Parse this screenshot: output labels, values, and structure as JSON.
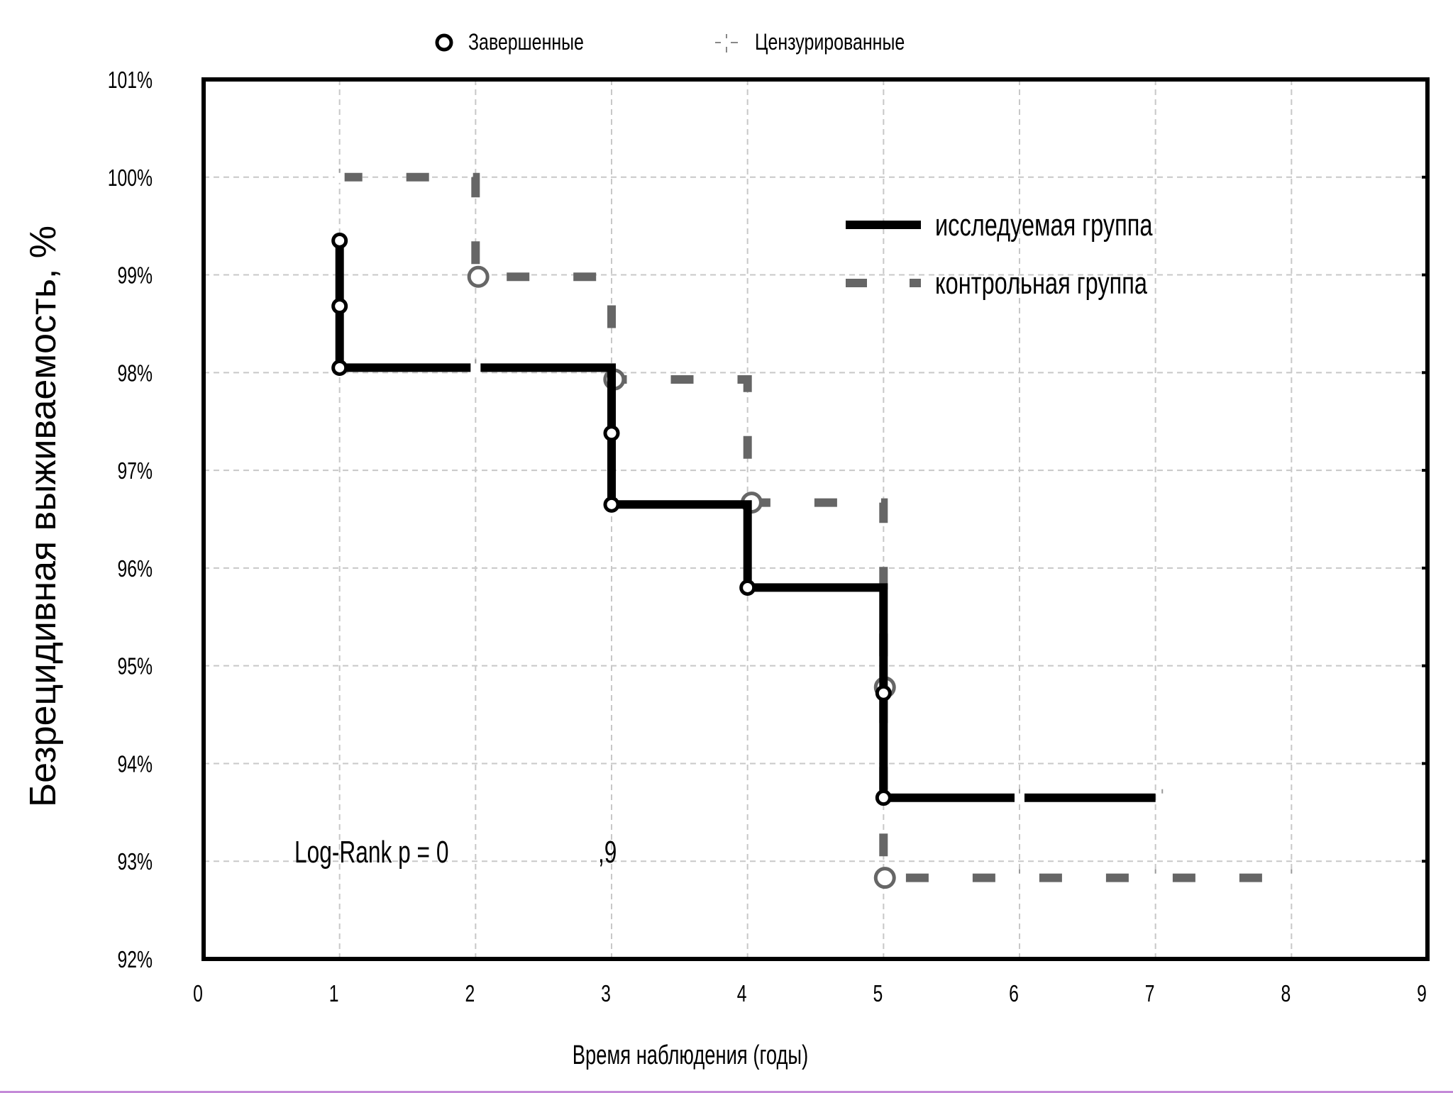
{
  "chart_data": {
    "type": "line",
    "xlabel": "Время наблюдения (годы)",
    "ylabel": "Безрецидивная выживаемость, %",
    "xlim": [
      0,
      9
    ],
    "ylim": [
      92,
      101
    ],
    "x_ticks": [
      "0",
      "1",
      "2",
      "3",
      "4",
      "5",
      "6",
      "7",
      "8",
      "9"
    ],
    "y_ticks": [
      "92%",
      "93%",
      "94%",
      "95%",
      "96%",
      "97%",
      "98%",
      "99%",
      "100%",
      "101%"
    ],
    "grid": true,
    "marker_legend": {
      "completed": "Завершенные",
      "censored": "Цензурированные",
      "placement": "top-center"
    },
    "annotation": {
      "label": "Log-Rank p = 0",
      "value": ",9"
    },
    "series": [
      {
        "name": "исследуемая группа",
        "color": "#000000",
        "style": "solid",
        "steps": [
          {
            "x": 1,
            "y": 99.35
          },
          {
            "x": 1,
            "y": 98.05
          },
          {
            "x": 3,
            "y": 98.05
          },
          {
            "x": 3,
            "y": 96.65
          },
          {
            "x": 4,
            "y": 96.65
          },
          {
            "x": 4,
            "y": 95.8
          },
          {
            "x": 5,
            "y": 95.8
          },
          {
            "x": 5,
            "y": 93.65
          },
          {
            "x": 7,
            "y": 93.65
          }
        ],
        "completed": [
          {
            "x": 1,
            "y": 99.35
          },
          {
            "x": 1,
            "y": 98.68
          },
          {
            "x": 1,
            "y": 98.05
          },
          {
            "x": 3,
            "y": 97.38
          },
          {
            "x": 3,
            "y": 96.65
          },
          {
            "x": 4,
            "y": 95.8
          },
          {
            "x": 5,
            "y": 94.72
          },
          {
            "x": 5,
            "y": 93.65
          }
        ],
        "censored": [
          {
            "x": 2,
            "y": 98.05
          },
          {
            "x": 6,
            "y": 93.65
          },
          {
            "x": 7.05,
            "y": 93.65
          }
        ]
      },
      {
        "name": "контрольная группа",
        "color": "#666666",
        "style": "dashed",
        "steps": [
          {
            "x": 1,
            "y": 100
          },
          {
            "x": 2,
            "y": 100
          },
          {
            "x": 2,
            "y": 98.98
          },
          {
            "x": 3,
            "y": 98.98
          },
          {
            "x": 3,
            "y": 97.93
          },
          {
            "x": 4,
            "y": 97.93
          },
          {
            "x": 4,
            "y": 96.67
          },
          {
            "x": 5,
            "y": 96.67
          },
          {
            "x": 5,
            "y": 92.83
          },
          {
            "x": 8.1,
            "y": 92.83
          }
        ],
        "completed": [
          {
            "x": 2.02,
            "y": 98.98
          },
          {
            "x": 3.02,
            "y": 97.93
          },
          {
            "x": 4.03,
            "y": 96.67
          },
          {
            "x": 5.01,
            "y": 94.78
          },
          {
            "x": 5.01,
            "y": 92.83
          }
        ],
        "censored": [
          {
            "x": 1,
            "y": 100
          },
          {
            "x": 6,
            "y": 92.83
          },
          {
            "x": 7,
            "y": 92.83
          },
          {
            "x": 8,
            "y": 92.83
          }
        ]
      }
    ]
  }
}
